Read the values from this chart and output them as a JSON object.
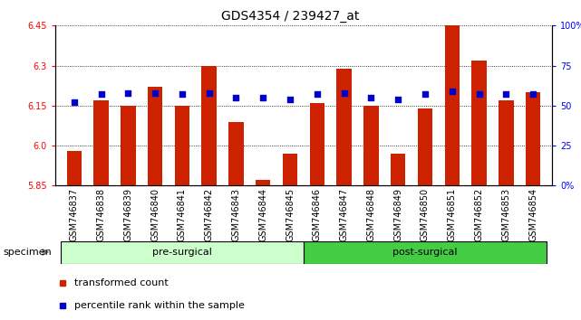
{
  "title": "GDS4354 / 239427_at",
  "samples": [
    "GSM746837",
    "GSM746838",
    "GSM746839",
    "GSM746840",
    "GSM746841",
    "GSM746842",
    "GSM746843",
    "GSM746844",
    "GSM746845",
    "GSM746846",
    "GSM746847",
    "GSM746848",
    "GSM746849",
    "GSM746850",
    "GSM746851",
    "GSM746852",
    "GSM746853",
    "GSM746854"
  ],
  "transformed_count": [
    5.98,
    6.17,
    6.15,
    6.22,
    6.15,
    6.3,
    6.09,
    5.87,
    5.97,
    6.16,
    6.29,
    6.15,
    5.97,
    6.14,
    6.45,
    6.32,
    6.17,
    6.2
  ],
  "percentile_rank": [
    52,
    57,
    58,
    58,
    57,
    58,
    55,
    55,
    54,
    57,
    58,
    55,
    54,
    57,
    59,
    57,
    57,
    57
  ],
  "groups": [
    {
      "label": "pre-surgical",
      "start": 0,
      "end": 9,
      "color": "#ccffcc"
    },
    {
      "label": "post-surgical",
      "start": 9,
      "end": 18,
      "color": "#44cc44"
    }
  ],
  "ylim_left": [
    5.85,
    6.45
  ],
  "ylim_right": [
    0,
    100
  ],
  "yticks_left": [
    5.85,
    6.0,
    6.15,
    6.3,
    6.45
  ],
  "yticks_right": [
    0,
    25,
    50,
    75,
    100
  ],
  "bar_color": "#cc2200",
  "dot_color": "#0000cc",
  "bar_width": 0.55,
  "bg_color": "#ffffff",
  "legend_items": [
    {
      "label": "transformed count",
      "color": "#cc2200"
    },
    {
      "label": "percentile rank within the sample",
      "color": "#0000cc"
    }
  ],
  "specimen_label": "specimen",
  "title_fontsize": 10,
  "tick_fontsize": 7,
  "label_fontsize": 8
}
